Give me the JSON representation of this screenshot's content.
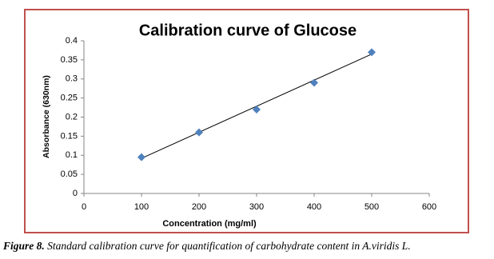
{
  "chart_data": {
    "type": "scatter",
    "title": "Calibration curve of Glucose",
    "x_label": "Concentration (mg/ml)",
    "y_label": "Absorbance (630nm)",
    "x": [
      100,
      200,
      300,
      400,
      500
    ],
    "values": [
      0.095,
      0.16,
      0.22,
      0.29,
      0.37
    ],
    "color": "#4f81bd",
    "trendline": {
      "x": [
        100,
        500
      ],
      "values": [
        0.092,
        0.365
      ],
      "color": "#000000"
    },
    "xlim": [
      0,
      600
    ],
    "xticks": [
      0,
      100,
      200,
      300,
      400,
      500,
      600
    ],
    "ylim": [
      0,
      0.4
    ],
    "yticks": [
      0,
      0.05,
      0.1,
      0.15,
      0.2,
      0.25,
      0.3,
      0.35,
      0.4
    ],
    "grid": false
  },
  "caption": {
    "label": "Figure 8.",
    "text": "Standard calibration curve for quantification of carbohydrate content in A.viridis L."
  }
}
